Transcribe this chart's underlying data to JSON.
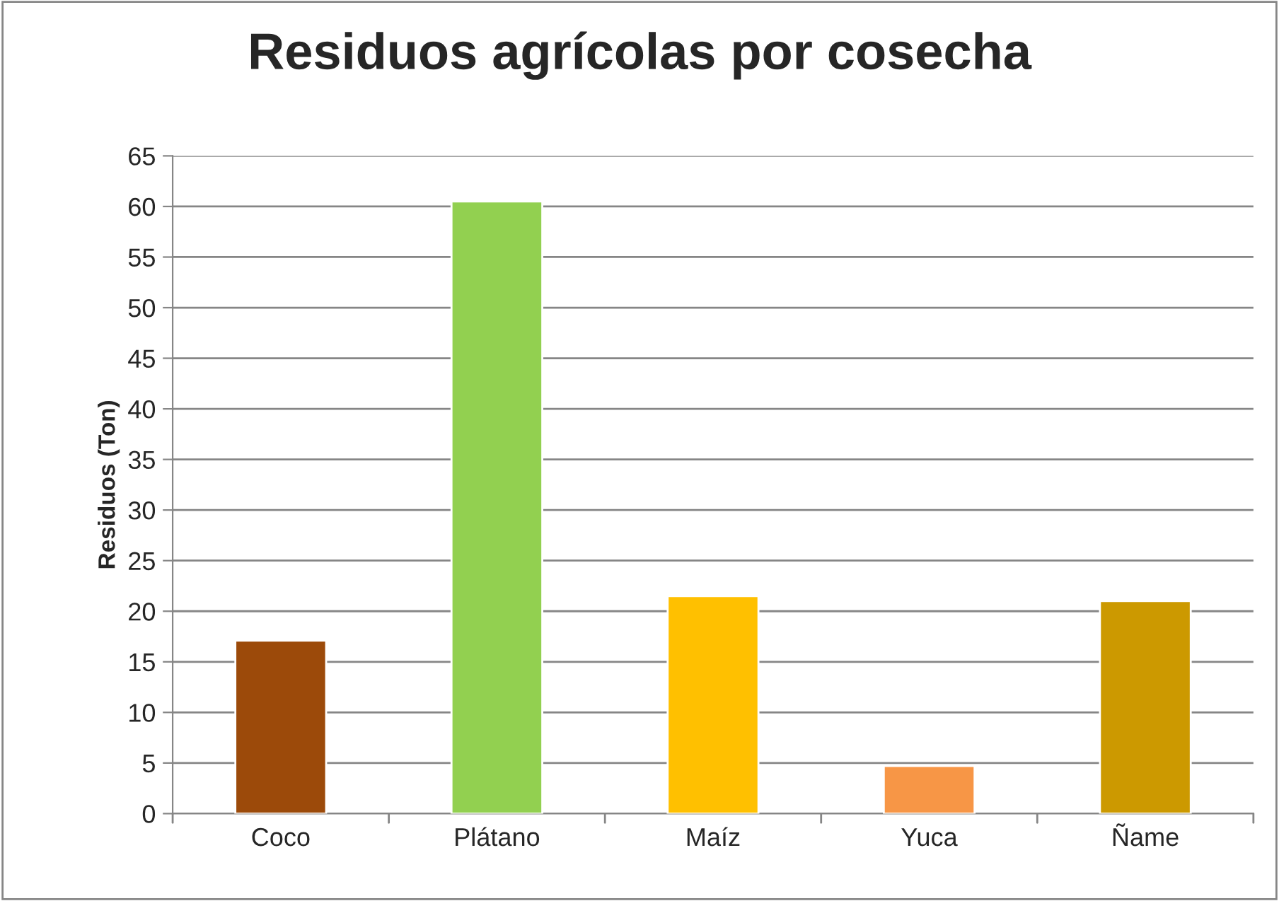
{
  "chart_data": {
    "type": "bar",
    "title": "Residuos agrícolas por cosecha",
    "ylabel": "Residuos (Ton)",
    "categories": [
      "Coco",
      "Plátano",
      "Maíz",
      "Yuca",
      "Ñame"
    ],
    "values": [
      17.1,
      60.5,
      21.5,
      4.7,
      21.0
    ],
    "colors": [
      "#9c4a0a",
      "#92d050",
      "#ffc000",
      "#f79646",
      "#cc9900"
    ],
    "ylim": [
      0,
      65
    ],
    "yticks": [
      0,
      5,
      10,
      15,
      20,
      25,
      30,
      35,
      40,
      45,
      50,
      55,
      60,
      65
    ],
    "grid": "y",
    "legend": false
  }
}
